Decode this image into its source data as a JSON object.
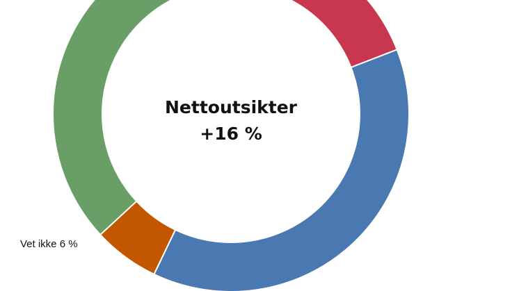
{
  "chart_data": {
    "type": "pie",
    "center_text": {
      "line1": "Nettoutsikter",
      "line2": "+16 %"
    },
    "slices": [
      {
        "value": 18,
        "color": "#c9364f",
        "label": ""
      },
      {
        "value": 38,
        "color": "#4a78b0",
        "label": ""
      },
      {
        "value": 6,
        "color": "#c25700",
        "label": "Vet ikke 6 %"
      },
      {
        "value": 38,
        "color": "#699f67",
        "label": ""
      }
    ],
    "start_angle_deg": 4
  }
}
